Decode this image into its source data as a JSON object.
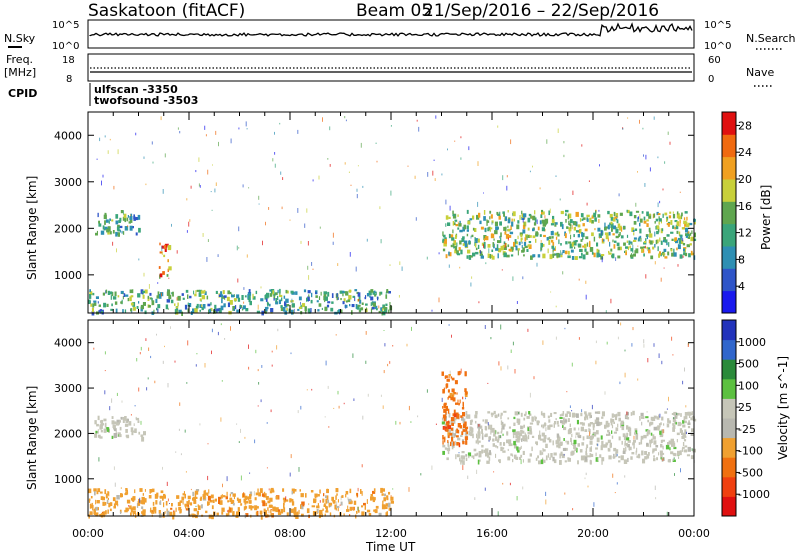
{
  "header": {
    "station_title": "Saskatoon (fitACF)",
    "beam_title": "Beam 05",
    "date_range": "21/Sep/2016 – 22/Sep/2016"
  },
  "top_panels": {
    "nsky_label": "N.Sky",
    "nsky_ticks": [
      "10^5",
      "10^0"
    ],
    "nsearch_label": "N.Search",
    "nsearch_ticks": [
      "10^5",
      "10^0"
    ],
    "freq_label": "Freq.",
    "freq_unit": "[MHz]",
    "freq_ticks": [
      "18",
      "8"
    ],
    "nave_label": "Nave",
    "nave_ticks": [
      "60",
      "0"
    ],
    "cpid_label": "CPID",
    "cpid_entries": [
      "ulfscan -3350",
      "twofsound -3503"
    ]
  },
  "colors": {
    "power": [
      "#1a1aee",
      "#2f55c8",
      "#2e8fb3",
      "#3aa57a",
      "#5fa64f",
      "#c8d03a",
      "#f0a020",
      "#f06a10",
      "#e01010"
    ],
    "velocity": [
      "#2233bb",
      "#3066cc",
      "#2a8a3a",
      "#5cc040",
      "#c6c6b8",
      "#b8b8b0",
      "#f0a030",
      "#f07010",
      "#f04010",
      "#e01010"
    ]
  },
  "chart_data": [
    {
      "type": "heatmap",
      "title": "Power",
      "xlabel": "Time UT",
      "ylabel": "Slant Range [km]",
      "xlim": [
        "00:00",
        "24:00"
      ],
      "ylim": [
        180,
        4500
      ],
      "x_ticks": [
        "00:00",
        "04:00",
        "08:00",
        "12:00",
        "16:00",
        "20:00",
        "00:00"
      ],
      "y_ticks": [
        1000,
        2000,
        3000,
        4000
      ],
      "colorbar": {
        "label": "Power [dB]",
        "ticks": [
          4,
          8,
          12,
          16,
          20,
          24,
          28
        ],
        "range": [
          0,
          30
        ]
      },
      "features": [
        {
          "region": "early arc",
          "time_h": [
            0.2,
            2.0
          ],
          "range_km": [
            1900,
            2400
          ],
          "power_db": 12
        },
        {
          "region": "near-range band",
          "time_h": [
            0.0,
            12.0
          ],
          "range_km": [
            200,
            700
          ],
          "power_db": 10
        },
        {
          "region": "spot",
          "time_h": [
            2.8,
            3.2
          ],
          "range_km": [
            1000,
            1700
          ],
          "power_db": 22
        },
        {
          "region": "evening band",
          "time_h": [
            14.0,
            24.0
          ],
          "range_km": [
            1400,
            2400
          ],
          "power_db": 14
        }
      ]
    },
    {
      "type": "heatmap",
      "title": "Velocity",
      "xlabel": "Time UT",
      "ylabel": "Slant Range [km]",
      "xlim": [
        "00:00",
        "24:00"
      ],
      "ylim": [
        180,
        4500
      ],
      "x_ticks": [
        "00:00",
        "04:00",
        "08:00",
        "12:00",
        "16:00",
        "20:00",
        "00:00"
      ],
      "y_ticks": [
        1000,
        2000,
        3000,
        4000
      ],
      "colorbar": {
        "label": "Velocity [m s^-1]",
        "ticks": [
          "1000",
          "500",
          "100",
          "25",
          "-25",
          "-100",
          "-500",
          "-1000"
        ]
      },
      "features": [
        {
          "region": "ground scatter arc",
          "time_h": [
            0.2,
            2.2
          ],
          "range_km": [
            1900,
            2400
          ],
          "velocity": 0
        },
        {
          "region": "near-range band",
          "time_h": [
            0.0,
            12.0
          ],
          "range_km": [
            200,
            800
          ],
          "velocity": -100
        },
        {
          "region": "evening band",
          "time_h": [
            14.0,
            24.0
          ],
          "range_km": [
            1400,
            2500
          ],
          "velocity": 0
        },
        {
          "region": "positive arc",
          "time_h": [
            14.0,
            15.0
          ],
          "range_km": [
            1800,
            3400
          ],
          "velocity": -500
        }
      ]
    }
  ]
}
